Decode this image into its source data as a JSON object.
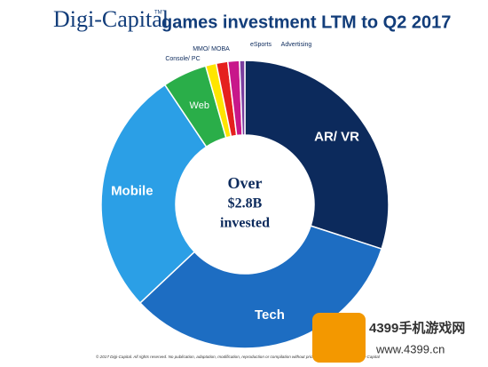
{
  "chart_data": {
    "type": "donut",
    "brand": "Digi-Capital",
    "brand_mark": "TM",
    "title": "games investment LTM to Q2 2017",
    "center_text": [
      "Over",
      "$2.8B",
      "invested"
    ],
    "categories": [
      "AR/ VR",
      "Tech",
      "Mobile",
      "Web",
      "Console/ PC",
      "MMO/ MOBA",
      "eSports",
      "Advertising"
    ],
    "values": [
      30,
      33,
      27.6,
      5,
      1.2,
      1.3,
      1.3,
      0.6
    ],
    "colors": [
      "#0c2a5c",
      "#1d6dc2",
      "#2b9fe6",
      "#2aae49",
      "#ffe500",
      "#e5201e",
      "#c8178a",
      "#7a3d9e"
    ],
    "footnote": "© 2017 Digi-Capital. All rights reserved. No publication, adaptation, modification, reproduction or compilation without prior written permission from Digi-Capital",
    "watermark": [
      "4399手机游戏网",
      "www.4399.cn"
    ]
  }
}
